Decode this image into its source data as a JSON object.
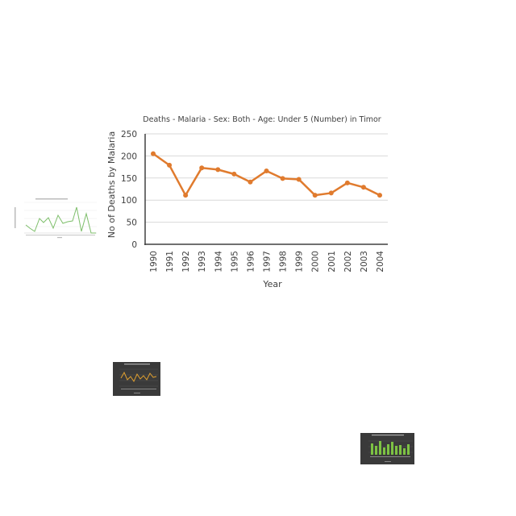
{
  "chart_data": {
    "type": "line",
    "title": "Deaths - Malaria - Sex: Both - Age: Under 5 (Number) in Timor",
    "xlabel": "Year",
    "ylabel": "No of Deaths by Malaria",
    "categories": [
      "1990",
      "1991",
      "1992",
      "1993",
      "1994",
      "1995",
      "1996",
      "1997",
      "1998",
      "1999",
      "2000",
      "2001",
      "2002",
      "2003",
      "2004"
    ],
    "series": [
      {
        "values": [
          205,
          179,
          111,
          173,
          169,
          159,
          141,
          166,
          149,
          147,
          111,
          116,
          139,
          129,
          111
        ]
      }
    ],
    "yticks": [
      0,
      50,
      100,
      150,
      200,
      250
    ],
    "ylim": [
      0,
      250
    ],
    "grid": true,
    "line_color": "#E07B2E"
  },
  "thumbnails": [
    {
      "name": "thumbnail-green-line-chart",
      "theme": "light",
      "line_color": "#7DBE6A",
      "kind": "line"
    },
    {
      "name": "thumbnail-orange-line-chart",
      "theme": "dark",
      "line_color": "#E0A030",
      "kind": "line"
    },
    {
      "name": "thumbnail-green-bar-chart",
      "theme": "dark",
      "bar_color": "#7DC243",
      "kind": "bar"
    }
  ]
}
